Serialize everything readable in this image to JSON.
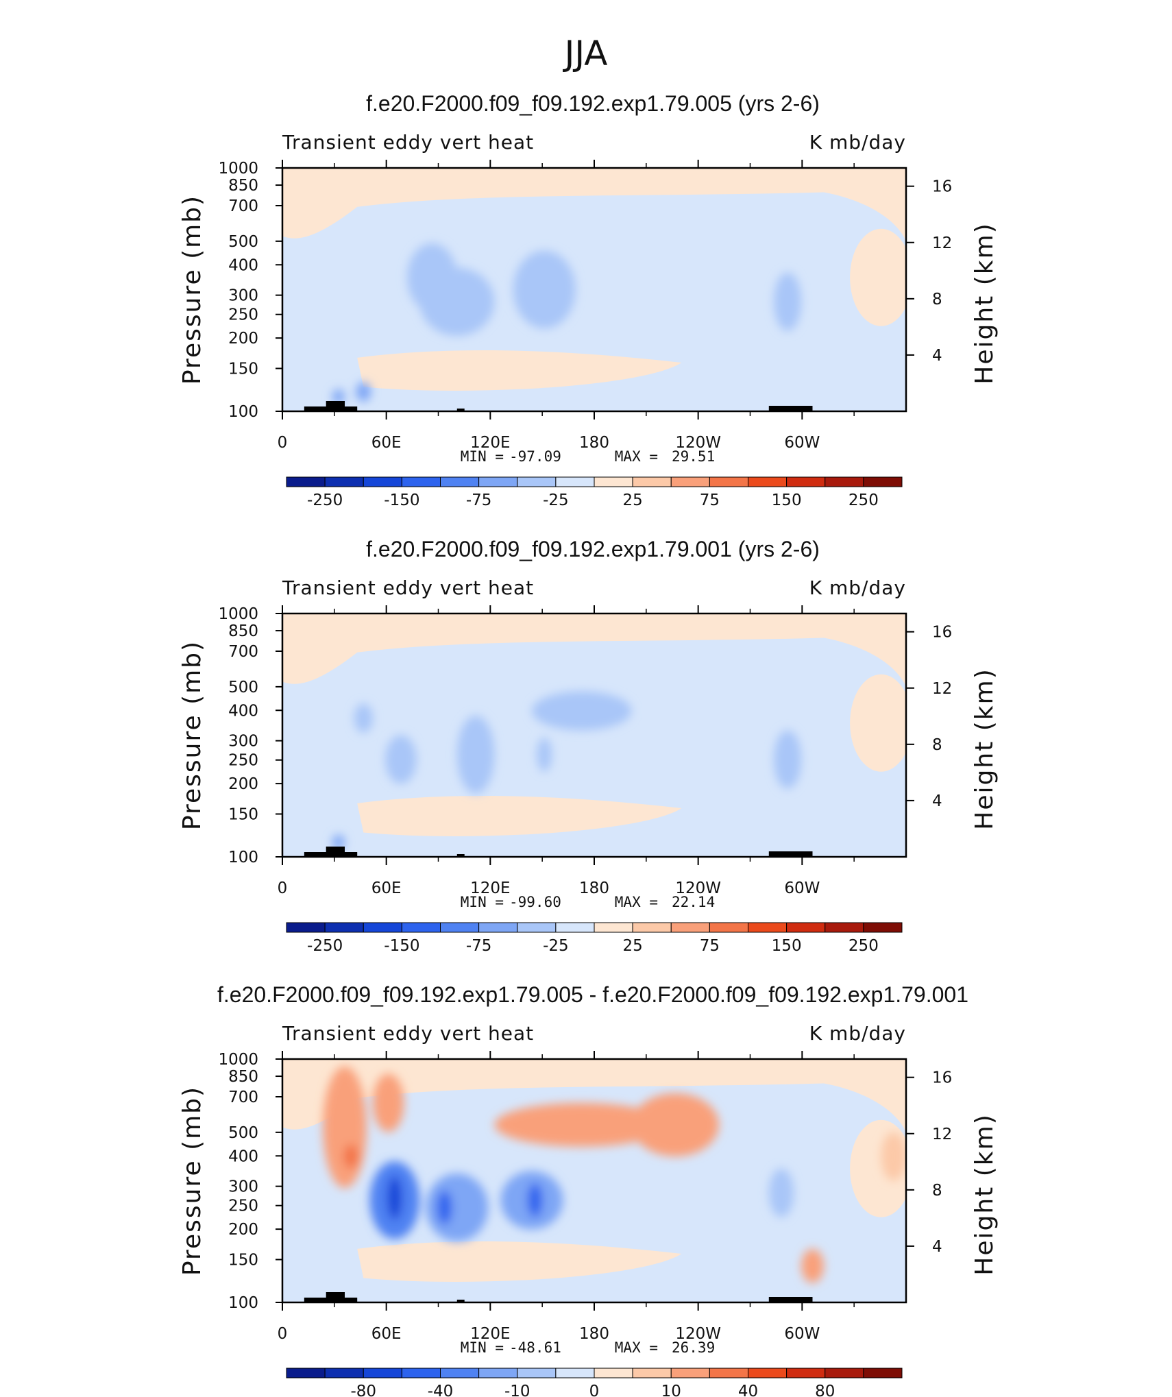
{
  "figure_title": "JJA",
  "chart_data": [
    {
      "type": "heatmap",
      "title": "f.e20.F2000.f09_f09.192.exp1.79.005 (yrs 2-6)",
      "variable": "Transient eddy vert heat",
      "units": "K mb/day",
      "xlabel": "",
      "ylabel": "Pressure (mb)",
      "ylabel_right": "Height (km)",
      "x_ticks": [
        "0",
        "60E",
        "120E",
        "180",
        "120W",
        "60W"
      ],
      "y_ticks": [
        "100",
        "150",
        "200",
        "250",
        "300",
        "400",
        "500",
        "700",
        "850",
        "1000"
      ],
      "y_ticks_right": [
        "16",
        "12",
        "8",
        "4"
      ],
      "ylim": [
        1000,
        100
      ],
      "min_label": "MIN =",
      "min_value": "-97.09",
      "max_label": "MAX =",
      "max_value": "29.51",
      "colorbar_labels": [
        "-250",
        "-150",
        "-75",
        "-25",
        "25",
        "75",
        "150",
        "250"
      ],
      "colorbar_colors": [
        "#0a1c8c",
        "#0d2fb0",
        "#1546d8",
        "#2d63ee",
        "#4f82f2",
        "#7ea6f5",
        "#a9c6f8",
        "#d7e6fb",
        "#fde6d2",
        "#fcc9a8",
        "#f9a07a",
        "#f37548",
        "#eb4a1c",
        "#d02c10",
        "#a81a0c",
        "#7e0d05"
      ]
    },
    {
      "type": "heatmap",
      "title": "f.e20.F2000.f09_f09.192.exp1.79.001 (yrs 2-6)",
      "variable": "Transient eddy vert heat",
      "units": "K mb/day",
      "xlabel": "",
      "ylabel": "Pressure (mb)",
      "ylabel_right": "Height (km)",
      "x_ticks": [
        "0",
        "60E",
        "120E",
        "180",
        "120W",
        "60W"
      ],
      "y_ticks": [
        "100",
        "150",
        "200",
        "250",
        "300",
        "400",
        "500",
        "700",
        "850",
        "1000"
      ],
      "y_ticks_right": [
        "16",
        "12",
        "8",
        "4"
      ],
      "ylim": [
        1000,
        100
      ],
      "min_label": "MIN =",
      "min_value": "-99.60",
      "max_label": "MAX =",
      "max_value": "22.14",
      "colorbar_labels": [
        "-250",
        "-150",
        "-75",
        "-25",
        "25",
        "75",
        "150",
        "250"
      ],
      "colorbar_colors": [
        "#0a1c8c",
        "#0d2fb0",
        "#1546d8",
        "#2d63ee",
        "#4f82f2",
        "#7ea6f5",
        "#a9c6f8",
        "#d7e6fb",
        "#fde6d2",
        "#fcc9a8",
        "#f9a07a",
        "#f37548",
        "#eb4a1c",
        "#d02c10",
        "#a81a0c",
        "#7e0d05"
      ]
    },
    {
      "type": "heatmap",
      "title": "f.e20.F2000.f09_f09.192.exp1.79.005 - f.e20.F2000.f09_f09.192.exp1.79.001",
      "variable": "Transient eddy vert heat",
      "units": "K mb/day",
      "xlabel": "",
      "ylabel": "Pressure (mb)",
      "ylabel_right": "Height (km)",
      "x_ticks": [
        "0",
        "60E",
        "120E",
        "180",
        "120W",
        "60W"
      ],
      "y_ticks": [
        "100",
        "150",
        "200",
        "250",
        "300",
        "400",
        "500",
        "700",
        "850",
        "1000"
      ],
      "y_ticks_right": [
        "16",
        "12",
        "8",
        "4"
      ],
      "ylim": [
        1000,
        100
      ],
      "min_label": "MIN =",
      "min_value": "-48.61",
      "max_label": "MAX =",
      "max_value": "26.39",
      "colorbar_labels": [
        "-80",
        "-40",
        "-10",
        "0",
        "10",
        "40",
        "80"
      ],
      "colorbar_colors": [
        "#0a1c8c",
        "#0d2fb0",
        "#1546d8",
        "#2d63ee",
        "#4f82f2",
        "#7ea6f5",
        "#a9c6f8",
        "#d7e6fb",
        "#fde6d2",
        "#fcc9a8",
        "#f9a07a",
        "#f37548",
        "#eb4a1c",
        "#d02c10",
        "#a81a0c",
        "#7e0d05"
      ]
    }
  ]
}
